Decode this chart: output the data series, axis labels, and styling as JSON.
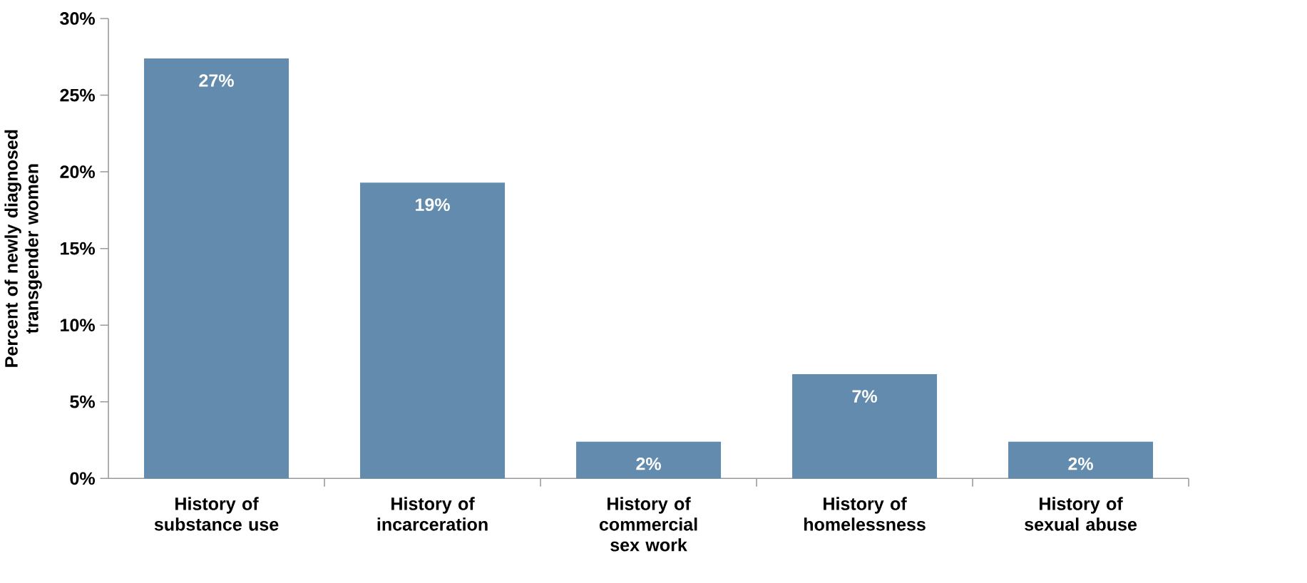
{
  "chart_data": {
    "type": "bar",
    "ylabel": "Percent of newly diagnosed transgender women",
    "categories": [
      "History of substance use",
      "History of incarceration",
      "History of commercial sex work",
      "History of homelessness",
      "History of sexual abuse"
    ],
    "values": [
      27.4,
      19.3,
      2.4,
      6.8,
      2.4
    ],
    "value_labels": [
      "27%",
      "19%",
      "2%",
      "7%",
      "2%"
    ],
    "color": "#628bad",
    "ylim": [
      0,
      30
    ],
    "yticks": [
      {
        "value": 0,
        "label": "0%"
      },
      {
        "value": 5,
        "label": "5%"
      },
      {
        "value": 10,
        "label": "10%"
      },
      {
        "value": 15,
        "label": "15%"
      },
      {
        "value": 20,
        "label": "20%"
      },
      {
        "value": 25,
        "label": "25%"
      },
      {
        "value": 30,
        "label": "30%"
      }
    ]
  }
}
